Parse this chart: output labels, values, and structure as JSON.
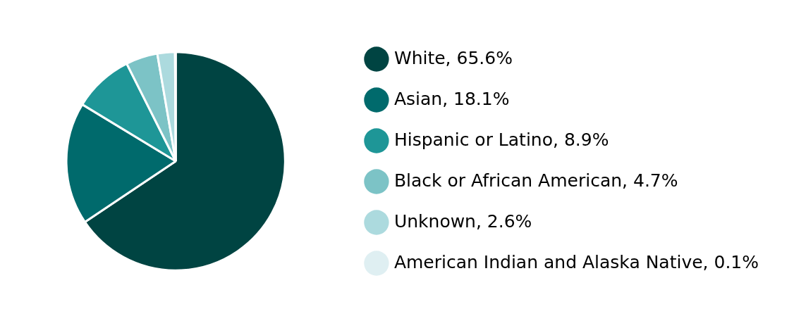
{
  "chart_data": {
    "type": "pie",
    "categories": [
      "White",
      "Asian",
      "Hispanic or Latino",
      "Black or African American",
      "Unknown",
      "American Indian and Alaska Native"
    ],
    "values": [
      65.6,
      18.1,
      8.9,
      4.7,
      2.6,
      0.1
    ],
    "colors": [
      "#004442",
      "#006a6c",
      "#1e9697",
      "#7cc3c6",
      "#acdade",
      "#dfeff2"
    ],
    "value_labels": [
      "65.6%",
      "18.1%",
      "8.9%",
      "4.7%",
      "2.6%",
      "0.1%"
    ],
    "legend": "right"
  }
}
